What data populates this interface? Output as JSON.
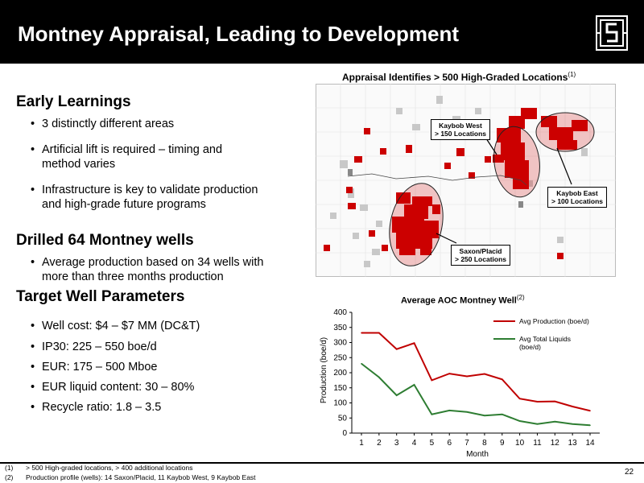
{
  "header": {
    "title": "Montney Appraisal, Leading to Development",
    "logo_icon": "company-logo"
  },
  "left": {
    "early_title": "Early Learnings",
    "early_bullets": [
      "3 distinctly different areas",
      "Artificial lift is required – timing and method varies",
      "Infrastructure is key to validate production and high-grade future programs"
    ],
    "drilled_title": "Drilled 64 Montney wells",
    "drilled_bullets": [
      "Average production based on 34 wells with more than three months production"
    ],
    "target_title": "Target Well Parameters",
    "target_bullets": [
      "Well cost: $4 – $7 MM (DC&T)",
      "IP30: 225 – 550 boe/d",
      "EUR: 175 – 500 Mboe",
      "EUR liquid content: 30 – 80%",
      "Recycle ratio: 1.8 – 3.5"
    ],
    "bullet_char": "•"
  },
  "map": {
    "title": "Appraisal Identifies > 500 High-Graded Locations",
    "title_sup": "(1)",
    "callouts": {
      "kaybob_west": [
        "Kaybob West",
        "> 150 Locations"
      ],
      "kaybob_east": [
        "Kaybob East",
        "> 100 Locations"
      ],
      "saxon": [
        "Saxon/Placid",
        "> 250 Locations"
      ]
    }
  },
  "chart_data": {
    "type": "line",
    "title": "Average AOC Montney Well",
    "title_sup": "(2)",
    "xlabel": "Month",
    "ylabel": "Production (boe/d)",
    "x": [
      1,
      2,
      3,
      4,
      5,
      6,
      7,
      8,
      9,
      10,
      11,
      12,
      13,
      14
    ],
    "ylim": [
      0,
      400
    ],
    "yticks": [
      0,
      50,
      100,
      150,
      200,
      250,
      300,
      350,
      400
    ],
    "grid": false,
    "legend_position": "top-right",
    "series": [
      {
        "name": "Avg Production (boe/d)",
        "color": "#c00000",
        "values": [
          332,
          332,
          278,
          298,
          175,
          197,
          188,
          196,
          178,
          114,
          104,
          105,
          88,
          74
        ]
      },
      {
        "name": "Avg Total Liquids (boe/d)",
        "color": "#2e7d32",
        "values": [
          230,
          185,
          125,
          160,
          62,
          75,
          70,
          58,
          62,
          40,
          30,
          38,
          30,
          26
        ]
      }
    ]
  },
  "footer": {
    "notes": [
      {
        "num": "(1)",
        "text": "> 500 High-graded locations, > 400 additional locations"
      },
      {
        "num": "(2)",
        "text": "Production profile (wells): 14 Saxon/Placid, 11 Kaybob West, 9 Kaybob East"
      }
    ],
    "page": "22"
  }
}
